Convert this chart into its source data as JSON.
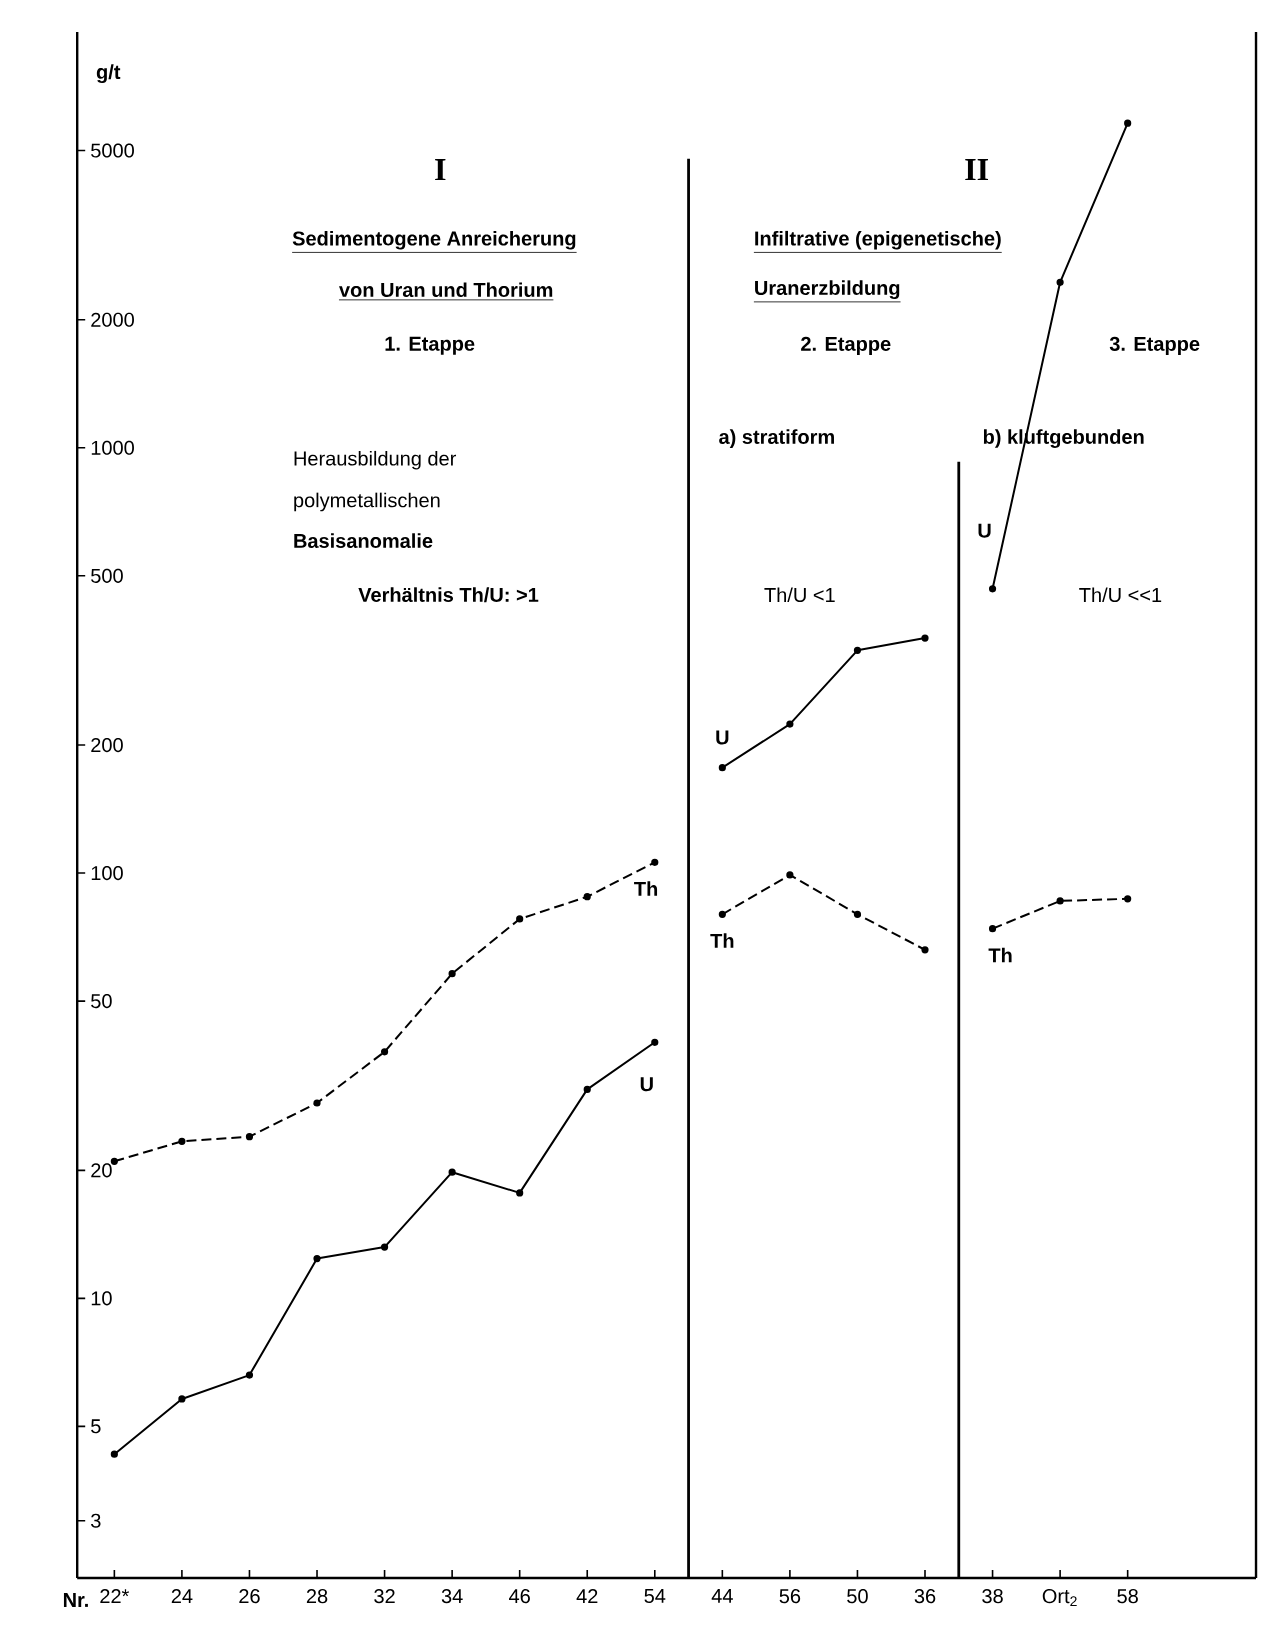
{
  "chart_data": {
    "type": "line",
    "xlabel": "Nr.",
    "ylabel": "g/t",
    "categories": [
      "22*",
      "24",
      "26",
      "28",
      "32",
      "34",
      "46",
      "42",
      "54",
      "44",
      "56",
      "50",
      "36",
      "38",
      "Ort$_{2}$",
      "58"
    ],
    "series": [
      {
        "name": "Th",
        "color": "#000000",
        "line_style": "dashed",
        "values": [
          21,
          23.4,
          24,
          28.8,
          38,
          58,
          78,
          88,
          106,
          null,
          null,
          null,
          null,
          null,
          null,
          null
        ]
      },
      {
        "name": "U",
        "color": "#000000",
        "line_style": "solid",
        "values": [
          4.3,
          5.8,
          6.6,
          12.4,
          13.2,
          19.8,
          17.7,
          31,
          40,
          null,
          null,
          null,
          null,
          null,
          null,
          null
        ]
      },
      {
        "name": "U",
        "color": "#000000",
        "line_style": "solid",
        "values": [
          null,
          null,
          null,
          null,
          null,
          null,
          null,
          null,
          null,
          177,
          224,
          334,
          357,
          null,
          null,
          null
        ]
      },
      {
        "name": "Th",
        "color": "#000000",
        "line_style": "dashed",
        "values": [
          null,
          null,
          null,
          null,
          null,
          null,
          null,
          null,
          null,
          80,
          99,
          80,
          66,
          null,
          null,
          null
        ]
      },
      {
        "name": "U",
        "color": "#000000",
        "line_style": "solid",
        "values": [
          null,
          null,
          null,
          null,
          null,
          null,
          null,
          null,
          null,
          null,
          null,
          null,
          null,
          466,
          2450,
          5800
        ]
      },
      {
        "name": "Th",
        "color": "#000000",
        "line_style": "dashed",
        "values": [
          null,
          null,
          null,
          null,
          null,
          null,
          null,
          null,
          null,
          null,
          null,
          null,
          null,
          74,
          86,
          87
        ]
      }
    ],
    "log": "y",
    "ylim": [
      2.2,
      9500
    ],
    "yticks": [
      3,
      5,
      10,
      20,
      50,
      100,
      200,
      500,
      1000,
      2000,
      5000
    ],
    "marker": "circle",
    "grid": false,
    "annotations": [
      "I",
      "Sedimentogene Anreicherung",
      "von Uran und Thorium",
      "1. Etappe",
      "II",
      "Infiltrative (epigenetische)",
      "Uranerzbildung",
      "2. Etappe",
      "3. Etappe",
      "Herausbildung der",
      "polymetallischen",
      "Basisanomalie",
      "Verhältnis Th/U: >1",
      "a) stratiform",
      "b) kluftgebunden",
      "Th/U <1",
      "Th/U <<1"
    ]
  }
}
